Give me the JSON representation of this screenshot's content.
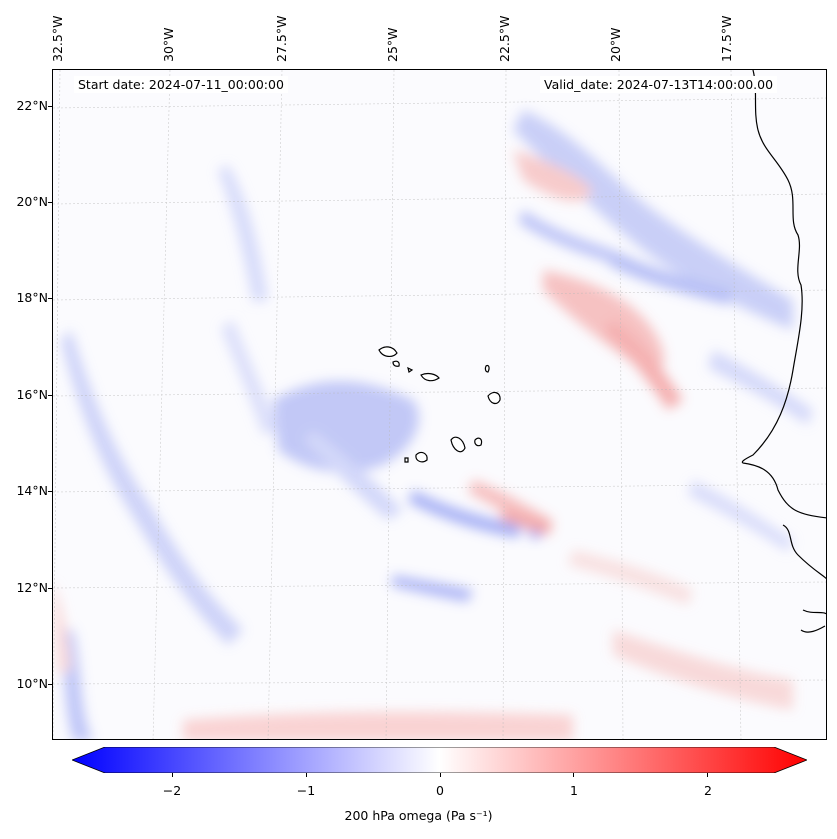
{
  "map": {
    "start_date_text": "Start date: 2024-07-11_00:00:00",
    "valid_date_text": "Valid_date: 2024-07-13T14:00:00.00",
    "longitude_labels": [
      "32.5°W",
      "30°W",
      "27.5°W",
      "25°W",
      "22.5°W",
      "20°W",
      "17.5°W"
    ],
    "latitude_labels": [
      "22°N",
      "20°N",
      "18°N",
      "16°N",
      "14°N",
      "12°N",
      "10°N"
    ],
    "colors": {
      "negative": "#0000ff",
      "positive": "#ff0000",
      "neutral": "#ffffff",
      "coastline": "#000000"
    }
  },
  "colorbar": {
    "tick_labels": [
      "−2",
      "−1",
      "0",
      "1",
      "2"
    ],
    "tick_values": [
      -2,
      -1,
      0,
      1,
      2
    ],
    "range": [
      -2.5,
      2.5
    ],
    "label_text": "200 hPa omega (Pa s⁻¹)"
  }
}
